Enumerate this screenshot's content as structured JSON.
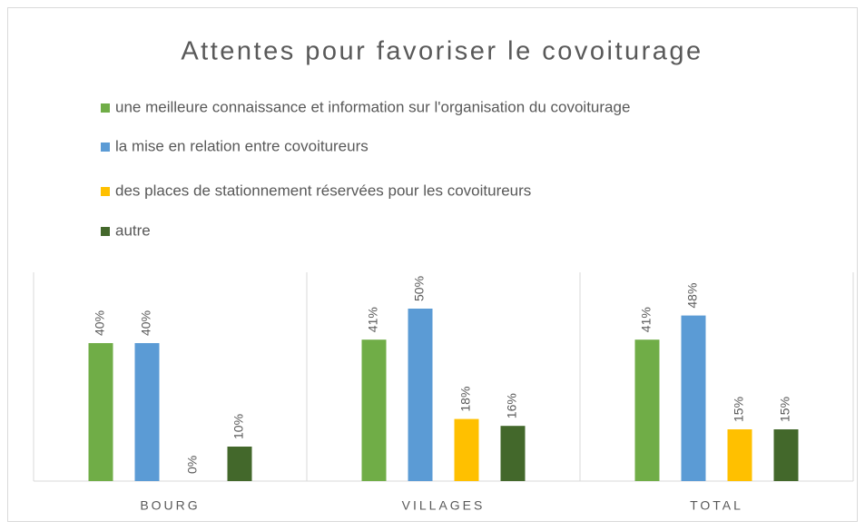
{
  "chart_data": {
    "type": "bar",
    "title": "Attentes pour favoriser le covoiturage",
    "categories": [
      "BOURG",
      "VILLAGES",
      "TOTAL"
    ],
    "series": [
      {
        "name": "une meilleure connaissance et information sur l'organisation du covoiturage",
        "color": "#70ad47",
        "values": [
          40,
          41,
          41
        ],
        "value_labels": [
          "40%",
          "41%",
          "41%"
        ]
      },
      {
        "name": "la mise en relation entre covoitureurs",
        "color": "#5b9bd5",
        "values": [
          40,
          50,
          48
        ],
        "value_labels": [
          "40%",
          "50%",
          "48%"
        ]
      },
      {
        "name": "des places de stationnement réservées pour les covoitureurs",
        "color": "#ffc000",
        "values": [
          0,
          18,
          15
        ],
        "value_labels": [
          "0%",
          "18%",
          "15%"
        ]
      },
      {
        "name": "autre",
        "color": "#43682b",
        "values": [
          10,
          16,
          15
        ],
        "value_labels": [
          "10%",
          "16%",
          "15%"
        ]
      }
    ],
    "legend": "top"
  }
}
